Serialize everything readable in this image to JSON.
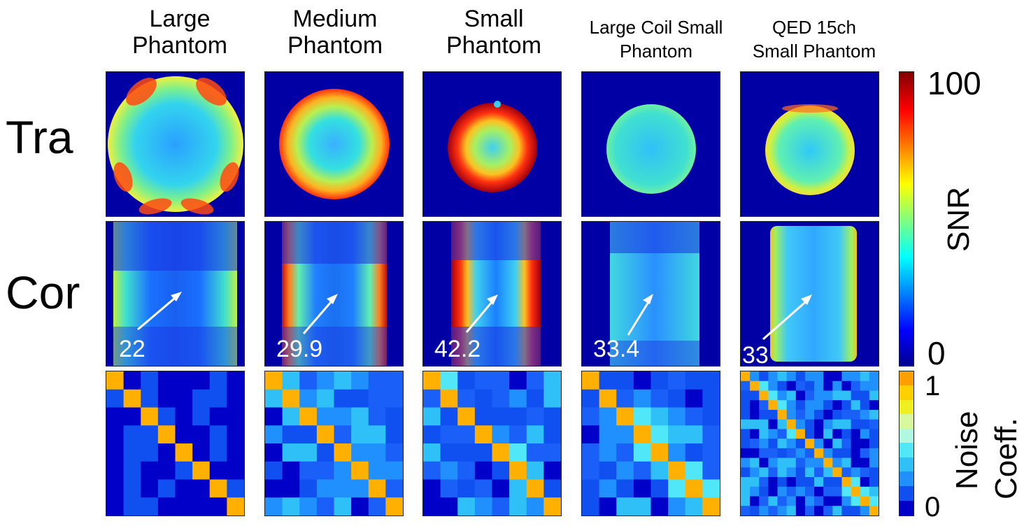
{
  "columns": [
    {
      "title_line1": "Large",
      "title_line2": "Phantom",
      "snr_value": "22"
    },
    {
      "title_line1": "Medium",
      "title_line2": "Phantom",
      "snr_value": "29.9"
    },
    {
      "title_line1": "Small",
      "title_line2": "Phantom",
      "snr_value": "42.2"
    },
    {
      "title_line1": "Large Coil Small",
      "title_line2": "Phantom",
      "snr_value": "33.4"
    },
    {
      "title_line1": "QED 15ch",
      "title_line2": "Small Phantom",
      "snr_value": "33"
    }
  ],
  "rows": {
    "tra": "Tra",
    "cor": "Cor"
  },
  "snr_colorbar": {
    "max_label": "100",
    "min_label": "0",
    "title": "SNR"
  },
  "noise_colorbar": {
    "max_label": "1",
    "min_label": "0",
    "title_line1": "Noise",
    "title_line2": "Coeff."
  },
  "colors": {
    "background_blue": "#0000a4",
    "matrix_diag": "#ffb000"
  }
}
